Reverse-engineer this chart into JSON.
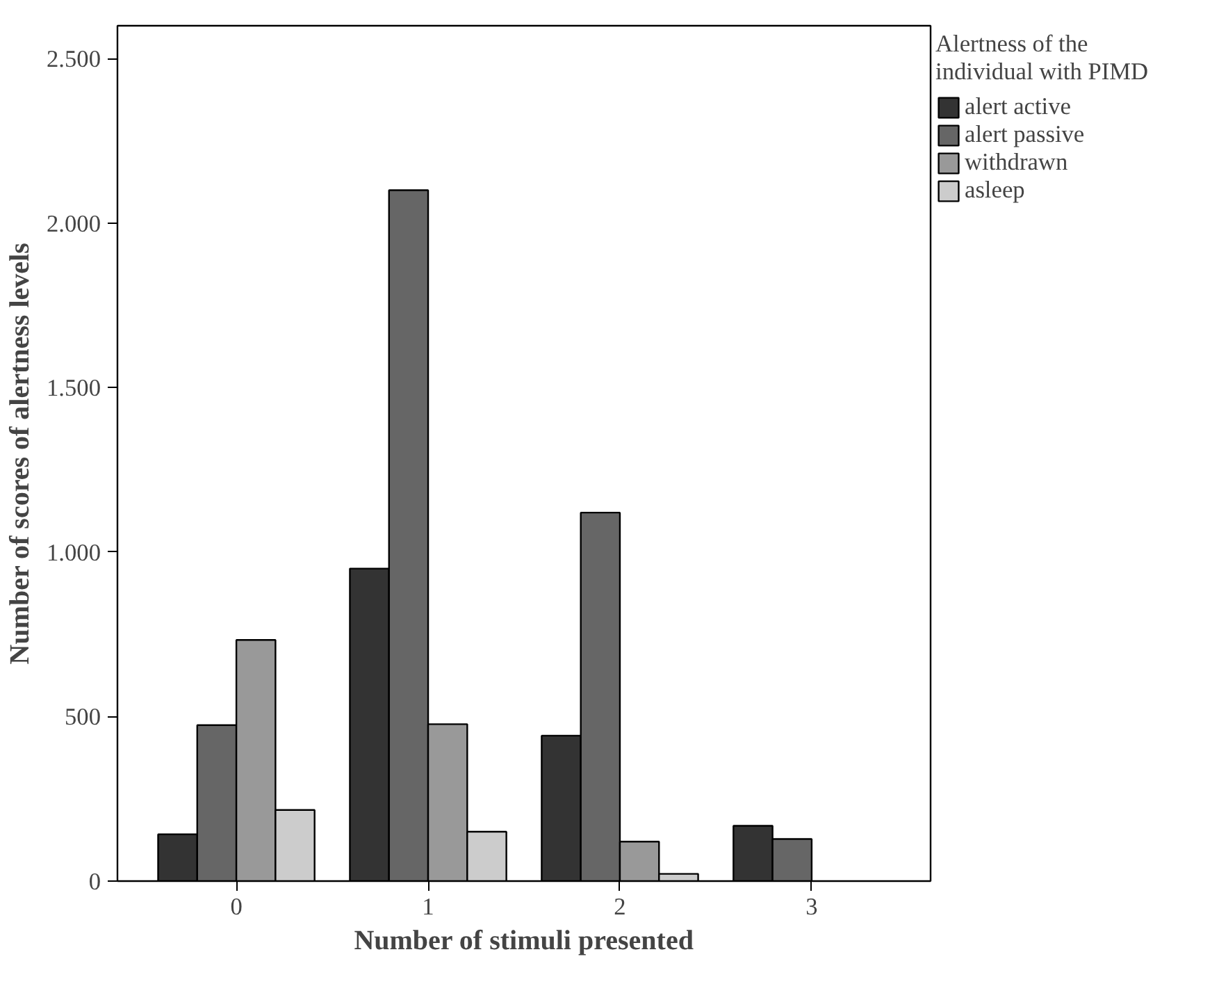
{
  "chart_data": {
    "type": "bar",
    "xlabel": "Number of stimuli presented",
    "ylabel": "Number of scores of alertness levels",
    "legend_title": "Alertness of the individual with PIMD",
    "legend": "right",
    "categories": [
      "0",
      "1",
      "2",
      "3"
    ],
    "series": [
      {
        "name": "alert active",
        "color": "#333333",
        "values": [
          142,
          950,
          442,
          168
        ]
      },
      {
        "name": "alert passive",
        "color": "#666666",
        "values": [
          474,
          2100,
          1120,
          128
        ]
      },
      {
        "name": "withdrawn",
        "color": "#999999",
        "values": [
          733,
          477,
          120,
          null
        ]
      },
      {
        "name": "asleep",
        "color": "#cccccc",
        "values": [
          216,
          150,
          22,
          null
        ]
      }
    ],
    "ylim": [
      0,
      2600
    ],
    "yticks": [
      0,
      500,
      {
        "value": 1000,
        "label": "1.000"
      },
      {
        "value": 1500,
        "label": "1.500"
      },
      {
        "value": 2000,
        "label": "2.000"
      },
      {
        "value": 2500,
        "label": "2.500"
      }
    ],
    "grid": false
  }
}
